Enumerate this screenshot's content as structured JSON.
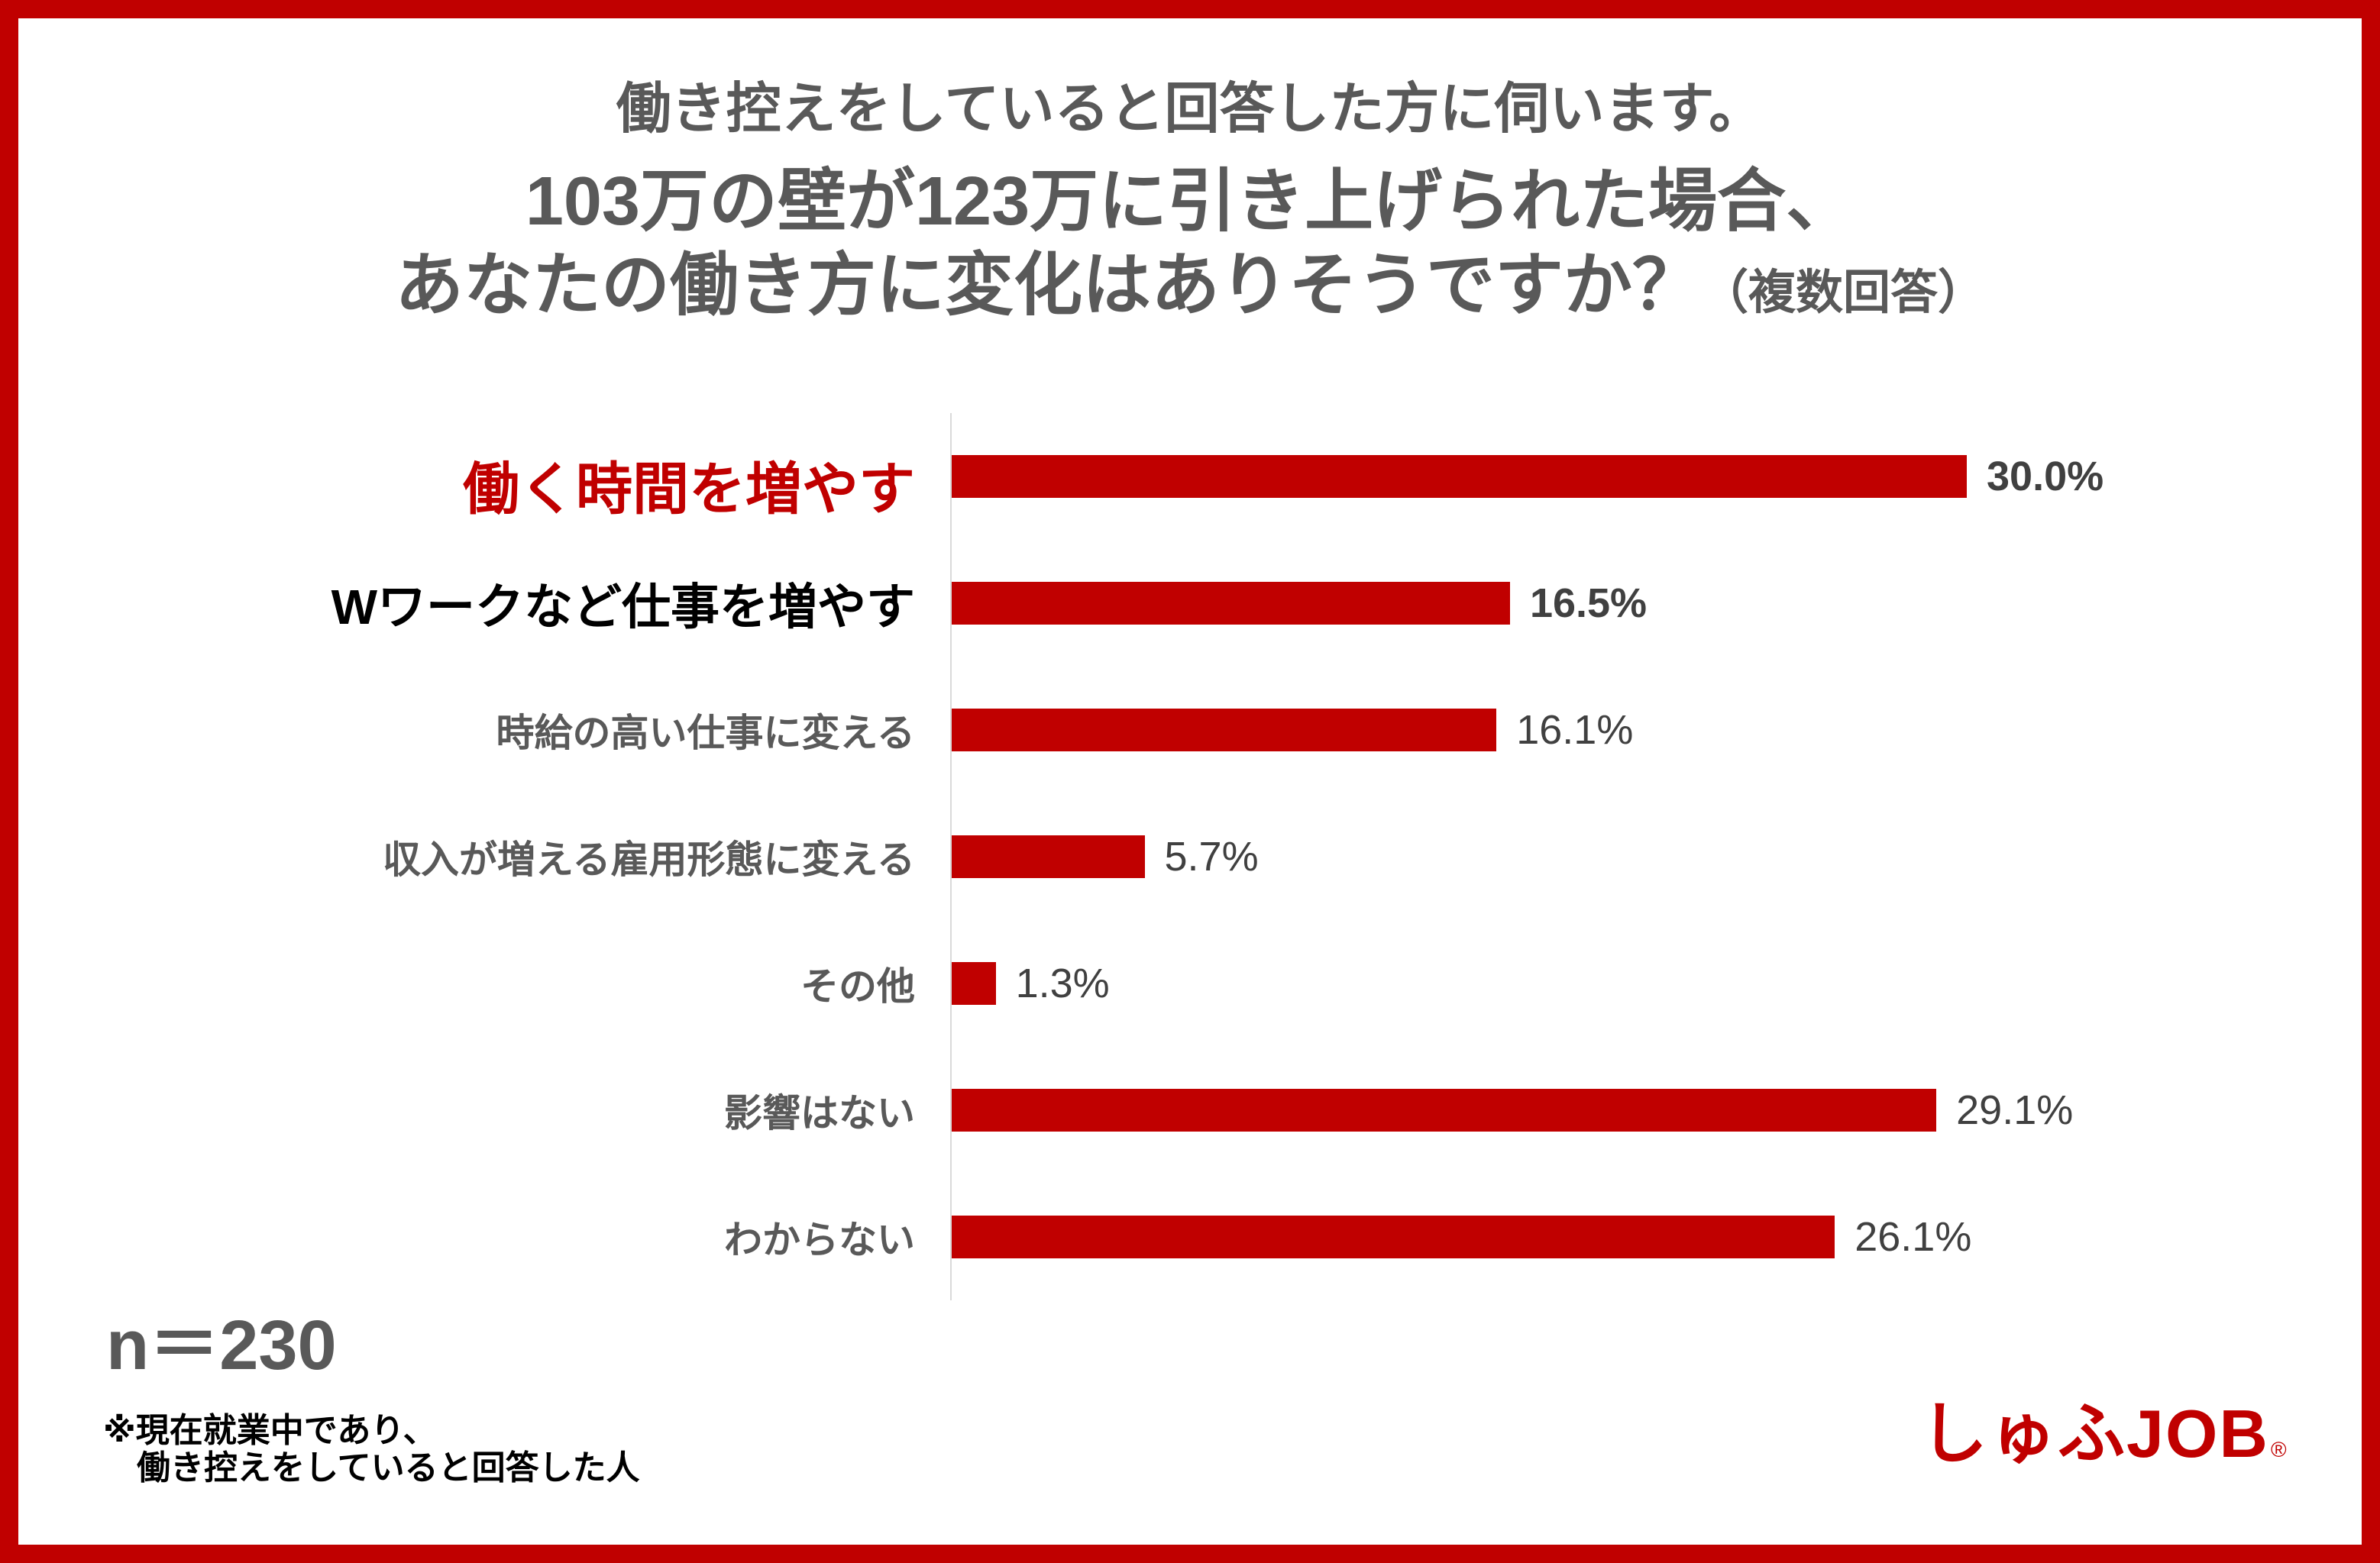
{
  "colors": {
    "border": "#C00000",
    "bar": "#C00000",
    "highlight_label": "#C00000",
    "title_text": "#595959",
    "value_text": "#404040",
    "axis": "#D9D9D9"
  },
  "chart_data": {
    "type": "bar",
    "orientation": "horizontal",
    "subtitle": "働き控えをしていると回答した方に伺います。",
    "title_lines": [
      "103万の壁が123万に引き上げられた場合、",
      "あなたの働き方に変化はありそうですか？"
    ],
    "title_note": "（複数回答）",
    "categories": [
      "働く時間を増やす",
      "Wワークなど仕事を増やす",
      "時給の高い仕事に変える",
      "収入が増える雇用形態に変える",
      "その他",
      "影響はない",
      "わからない"
    ],
    "values": [
      30.0,
      16.5,
      16.1,
      5.7,
      1.3,
      29.1,
      26.1
    ],
    "data_labels": [
      "30.0%",
      "16.5%",
      "16.1%",
      "5.7%",
      "1.3%",
      "29.1%",
      "26.1%"
    ],
    "unit": "%",
    "xlim": [
      0,
      30
    ],
    "grid": false,
    "legend": "none",
    "sample_size": "n＝230",
    "footnote": [
      "※現在就業中であり、",
      "働き控えをしていると回答した人"
    ]
  },
  "logo": {
    "text": "しゅふJOB",
    "registered_mark": "®"
  }
}
